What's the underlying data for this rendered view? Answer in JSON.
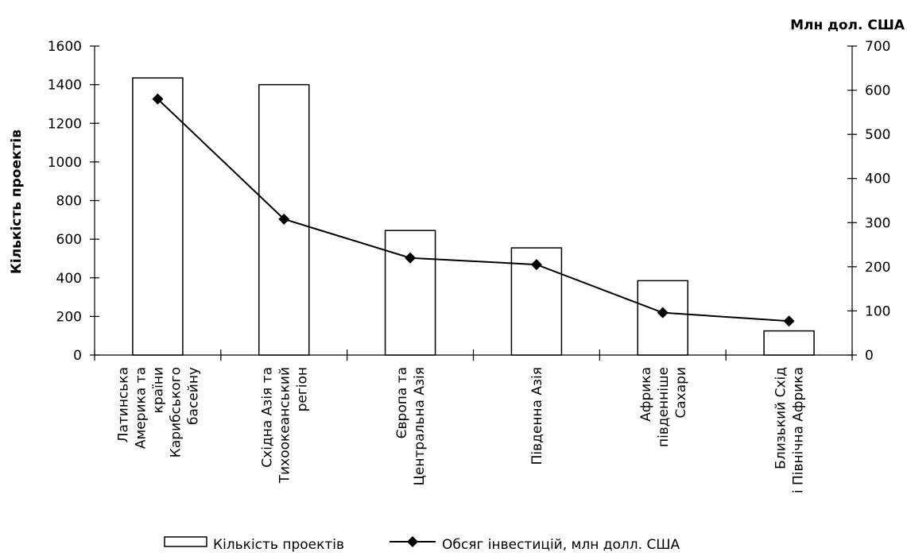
{
  "chart_data": {
    "type": "bar",
    "categories": [
      [
        "Латинська",
        "Америка та",
        "країни",
        "Карибського",
        "басейну"
      ],
      [
        "Східна Азія та",
        "Тихоокеанський",
        "регіон"
      ],
      [
        "Європа та",
        "Центральна Азія"
      ],
      [
        "Південна Азія"
      ],
      [
        "Африка",
        "південніше",
        "Сахари"
      ],
      [
        "Близький Схід",
        "і Північна Африка"
      ]
    ],
    "series": [
      {
        "name": "Кількість проектів",
        "type": "bar",
        "axis": "left",
        "values": [
          1435,
          1400,
          645,
          555,
          385,
          125
        ]
      },
      {
        "name": "Обсяг інвестицій, млн долл. США",
        "type": "line",
        "axis": "right",
        "values": [
          580,
          308,
          220,
          205,
          96,
          77
        ]
      }
    ],
    "ylabel": "Кількість проектів",
    "y2label": "Млн дол. США",
    "ylim": [
      0,
      1600
    ],
    "y2lim": [
      0,
      700
    ],
    "yticks": [
      0,
      200,
      400,
      600,
      800,
      1000,
      1200,
      1400,
      1600
    ],
    "y2ticks": [
      0,
      100,
      200,
      300,
      400,
      500,
      600,
      700
    ],
    "legend_position": "bottom",
    "grid": false
  }
}
